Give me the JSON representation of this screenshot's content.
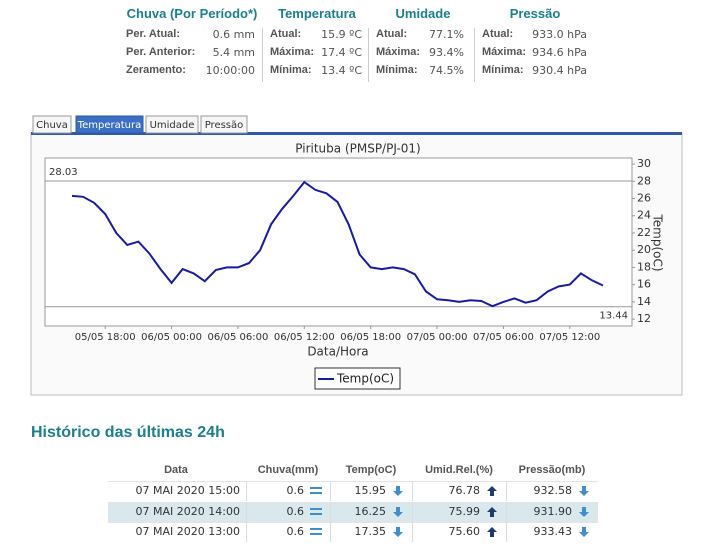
{
  "summary": [
    {
      "title": "Chuva (Por Período*)",
      "rows": [
        [
          "Per. Atual:",
          "0.6 mm"
        ],
        [
          "Per. Anterior:",
          "5.4 mm"
        ],
        [
          "Zeramento:",
          "10:00:00"
        ]
      ]
    },
    {
      "title": "Temperatura",
      "rows": [
        [
          "Atual:",
          "15.9 ºC"
        ],
        [
          "Máxima:",
          "17.4 ºC"
        ],
        [
          "Mínima:",
          "13.4 ºC"
        ]
      ]
    },
    {
      "title": "Umidade",
      "rows": [
        [
          "Atual:",
          "77.1%"
        ],
        [
          "Máxima:",
          "93.4%"
        ],
        [
          "Mínima:",
          "74.5%"
        ]
      ]
    },
    {
      "title": "Pressão",
      "rows": [
        [
          "Atual:",
          "933.0 hPa"
        ],
        [
          "Máxima:",
          "934.6 hPa"
        ],
        [
          "Mínima:",
          "930.4 hPa"
        ]
      ]
    }
  ],
  "tabs": [
    "Chuva",
    "Temperatura",
    "Umidade",
    "Pressão"
  ],
  "chart_data": {
    "type": "line",
    "title": "Pirituba (PMSP/PJ-01)",
    "x_label": "Data/Hora",
    "y_label": "Temp(oC)",
    "x": [
      "05/05 15:00",
      "05/05 16:00",
      "05/05 17:00",
      "05/05 18:00",
      "05/05 19:00",
      "05/05 20:00",
      "05/05 21:00",
      "05/05 22:00",
      "05/05 23:00",
      "06/05 00:00",
      "06/05 01:00",
      "06/05 02:00",
      "06/05 03:00",
      "06/05 04:00",
      "06/05 05:00",
      "06/05 06:00",
      "06/05 07:00",
      "06/05 08:00",
      "06/05 09:00",
      "06/05 10:00",
      "06/05 11:00",
      "06/05 12:00",
      "06/05 13:00",
      "06/05 14:00",
      "06/05 15:00",
      "06/05 16:00",
      "06/05 17:00",
      "06/05 18:00",
      "06/05 19:00",
      "06/05 20:00",
      "06/05 21:00",
      "06/05 22:00",
      "06/05 23:00",
      "07/05 00:00",
      "07/05 01:00",
      "07/05 02:00",
      "07/05 03:00",
      "07/05 04:00",
      "07/05 05:00",
      "07/05 06:00",
      "07/05 07:00",
      "07/05 08:00",
      "07/05 09:00",
      "07/05 10:00",
      "07/05 11:00",
      "07/05 12:00",
      "07/05 13:00",
      "07/05 14:00",
      "07/05 15:00"
    ],
    "series": [
      {
        "name": "Temp(oC)",
        "color": "#1a1aa8",
        "values": [
          26.3,
          26.2,
          25.5,
          24.2,
          22.0,
          20.6,
          21.0,
          19.6,
          17.8,
          16.2,
          17.8,
          17.3,
          16.4,
          17.7,
          18.0,
          18.0,
          18.5,
          20.0,
          23.0,
          24.8,
          26.3,
          27.9,
          27.0,
          26.6,
          25.6,
          23.0,
          19.5,
          18.0,
          17.8,
          18.0,
          17.8,
          17.2,
          15.2,
          14.3,
          14.2,
          14.0,
          14.2,
          14.1,
          13.5,
          14.0,
          14.4,
          13.9,
          14.2,
          15.2,
          15.8,
          16.0,
          17.3,
          16.5,
          15.9
        ]
      }
    ],
    "xticks": [
      "05/05 18:00",
      "06/05 00:00",
      "06/05 06:00",
      "06/05 12:00",
      "06/05 18:00",
      "07/05 00:00",
      "07/05 06:00",
      "07/05 12:00"
    ],
    "ylim": [
      11.2,
      30.7
    ],
    "yticks": [
      12,
      14,
      16,
      18,
      20,
      22,
      24,
      26,
      28,
      30
    ],
    "reference_lines": [
      28.03,
      13.44
    ],
    "legend": "bottom"
  },
  "history": {
    "title": "Histórico das últimas 24h",
    "columns": [
      "Data",
      "Chuva(mm)",
      "Temp(oC)",
      "Umid.Rel.(%)",
      "Pressão(mb)"
    ],
    "rows": [
      [
        "07 MAI 2020 15:00",
        "0.6",
        "15.95",
        "76.78",
        "932.58"
      ],
      [
        "07 MAI 2020 14:00",
        "0.6",
        "16.25",
        "75.99",
        "931.90"
      ],
      [
        "07 MAI 2020 13:00",
        "0.6",
        "17.35",
        "75.60",
        "933.43"
      ]
    ]
  }
}
